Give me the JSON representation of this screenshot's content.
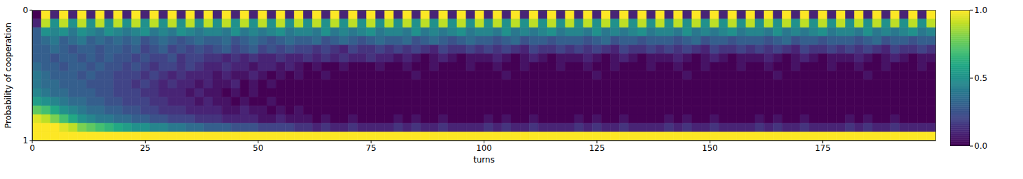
{
  "chart_data": {
    "type": "heatmap",
    "xlabel": "turns",
    "ylabel": "Probability of cooperation",
    "xlim": [
      0,
      200
    ],
    "xticks": [
      0,
      25,
      50,
      75,
      100,
      125,
      150,
      175
    ],
    "ylim": [
      0,
      1
    ],
    "yticks": [
      0,
      1
    ],
    "colorbar": {
      "range": [
        0,
        1
      ],
      "ticks": [
        {
          "value": 0,
          "label": "0.0"
        },
        {
          "value": 0.5,
          "label": "0.5"
        },
        {
          "value": 1,
          "label": "1.0"
        }
      ]
    },
    "cells": [
      [
        0,
        1,
        0.1,
        1,
        0.1,
        1,
        0.1,
        1,
        0.1,
        1,
        0.1,
        1,
        0.1,
        1,
        0.1,
        1,
        0.1,
        1,
        0.1,
        1,
        0.1,
        1,
        0.1,
        1,
        0.1,
        1,
        0.1,
        1,
        0.1,
        1,
        0.1,
        1,
        0.1,
        1,
        0.1,
        1,
        0.1,
        1,
        0.1,
        1,
        0.1,
        1,
        0.1,
        1,
        0.1,
        1,
        0.1,
        1,
        0.1,
        1,
        0.1,
        1,
        0.1,
        1,
        0.1,
        1,
        0.1,
        1,
        0.1,
        1,
        0.1,
        1,
        0.1,
        1,
        0.1,
        1,
        0.1,
        1,
        0.1,
        1,
        0.1,
        1,
        0.1,
        1,
        0.1,
        1,
        0.1,
        1,
        0.1,
        1,
        0.1,
        1,
        0.1,
        1,
        0.1,
        1,
        0.1,
        1,
        0.1,
        1,
        0.1,
        1,
        0.1,
        1,
        0.1,
        1,
        0.1,
        1,
        0.1,
        1
      ],
      [
        0.1,
        0.9,
        0.5,
        0.9,
        0.5,
        0.9,
        0.5,
        0.9,
        0.5,
        0.9,
        0.5,
        0.9,
        0.5,
        0.9,
        0.5,
        0.9,
        0.5,
        0.9,
        0.5,
        0.9,
        0.5,
        0.9,
        0.5,
        0.9,
        0.5,
        0.9,
        0.5,
        0.9,
        0.5,
        0.9,
        0.5,
        0.9,
        0.5,
        0.9,
        0.5,
        0.9,
        0.5,
        0.9,
        0.5,
        0.9,
        0.5,
        0.9,
        0.5,
        0.9,
        0.5,
        0.9,
        0.5,
        0.9,
        0.5,
        0.9,
        0.5,
        0.9,
        0.5,
        0.9,
        0.5,
        0.9,
        0.5,
        0.9,
        0.5,
        0.9,
        0.5,
        0.9,
        0.5,
        0.9,
        0.5,
        0.9,
        0.5,
        0.9,
        0.5,
        0.9,
        0.5,
        0.9,
        0.5,
        0.9,
        0.5,
        0.9,
        0.5,
        0.9,
        0.5,
        0.9,
        0.5,
        0.9,
        0.5,
        0.9,
        0.5,
        0.9,
        0.5,
        0.9,
        0.5,
        0.9,
        0.5,
        0.9,
        0.5,
        0.9,
        0.5,
        0.9,
        0.5,
        0.9,
        0.5,
        0.9
      ],
      [
        0.3,
        0.5,
        0.45,
        0.5,
        0.4,
        0.5,
        0.45,
        0.4,
        0.5,
        0.45,
        0.4,
        0.45,
        0.5,
        0.4,
        0.45,
        0.4,
        0.5,
        0.45,
        0.4,
        0.45,
        0.45,
        0.4,
        0.5,
        0.4,
        0.45,
        0.4,
        0.45,
        0.5,
        0.4,
        0.45,
        0.45,
        0.4,
        0.5,
        0.4,
        0.45,
        0.4,
        0.45,
        0.5,
        0.4,
        0.45,
        0.45,
        0.4,
        0.5,
        0.4,
        0.45,
        0.4,
        0.45,
        0.5,
        0.4,
        0.45,
        0.45,
        0.4,
        0.5,
        0.4,
        0.45,
        0.4,
        0.45,
        0.5,
        0.4,
        0.45,
        0.45,
        0.4,
        0.5,
        0.4,
        0.45,
        0.4,
        0.45,
        0.5,
        0.4,
        0.45,
        0.45,
        0.4,
        0.5,
        0.4,
        0.45,
        0.4,
        0.45,
        0.5,
        0.4,
        0.45,
        0.45,
        0.4,
        0.5,
        0.4,
        0.45,
        0.4,
        0.45,
        0.5,
        0.4,
        0.45,
        0.45,
        0.4,
        0.5,
        0.4,
        0.45,
        0.4,
        0.45,
        0.5,
        0.4,
        0.45
      ],
      [
        0.3,
        0.35,
        0.4,
        0.3,
        0.35,
        0.4,
        0.3,
        0.35,
        0.3,
        0.35,
        0.3,
        0.35,
        0.25,
        0.3,
        0.35,
        0.3,
        0.25,
        0.3,
        0.35,
        0.3,
        0.3,
        0.35,
        0.25,
        0.3,
        0.35,
        0.3,
        0.25,
        0.3,
        0.35,
        0.3,
        0.3,
        0.35,
        0.25,
        0.3,
        0.35,
        0.3,
        0.25,
        0.3,
        0.35,
        0.3,
        0.3,
        0.35,
        0.25,
        0.3,
        0.35,
        0.3,
        0.25,
        0.3,
        0.35,
        0.3,
        0.3,
        0.25,
        0.3,
        0.35,
        0.25,
        0.3,
        0.3,
        0.25,
        0.3,
        0.3,
        0.3,
        0.25,
        0.3,
        0.35,
        0.25,
        0.3,
        0.3,
        0.25,
        0.3,
        0.3,
        0.3,
        0.25,
        0.3,
        0.35,
        0.25,
        0.3,
        0.3,
        0.25,
        0.3,
        0.3,
        0.3,
        0.25,
        0.3,
        0.35,
        0.25,
        0.3,
        0.3,
        0.25,
        0.3,
        0.3,
        0.3,
        0.25,
        0.3,
        0.35,
        0.25,
        0.3,
        0.3,
        0.25,
        0.3,
        0.3
      ],
      [
        0.3,
        0.3,
        0.35,
        0.3,
        0.25,
        0.3,
        0.3,
        0.25,
        0.3,
        0.3,
        0.25,
        0.3,
        0.2,
        0.25,
        0.3,
        0.2,
        0.25,
        0.2,
        0.25,
        0.2,
        0.25,
        0.3,
        0.2,
        0.25,
        0.3,
        0.2,
        0.25,
        0.2,
        0.25,
        0.2,
        0.2,
        0.15,
        0.2,
        0.15,
        0.1,
        0.2,
        0.15,
        0.15,
        0.2,
        0.15,
        0.2,
        0.15,
        0.2,
        0.15,
        0.1,
        0.2,
        0.15,
        0.15,
        0.2,
        0.15,
        0.2,
        0.15,
        0.2,
        0.15,
        0.1,
        0.2,
        0.15,
        0.15,
        0.2,
        0.15,
        0.2,
        0.15,
        0.2,
        0.15,
        0.1,
        0.2,
        0.15,
        0.15,
        0.2,
        0.15,
        0.2,
        0.15,
        0.2,
        0.15,
        0.1,
        0.2,
        0.15,
        0.15,
        0.2,
        0.15,
        0.2,
        0.15,
        0.2,
        0.15,
        0.1,
        0.2,
        0.15,
        0.15,
        0.2,
        0.15,
        0.2,
        0.15,
        0.2,
        0.15,
        0.1,
        0.2,
        0.15,
        0.15,
        0.2,
        0.15
      ],
      [
        0.3,
        0.3,
        0.25,
        0.3,
        0.3,
        0.25,
        0.3,
        0.25,
        0.3,
        0.25,
        0.25,
        0.2,
        0.25,
        0.2,
        0.2,
        0.25,
        0.15,
        0.2,
        0.2,
        0.15,
        0.15,
        0.1,
        0.15,
        0.1,
        0.15,
        0.1,
        0.1,
        0.15,
        0.1,
        0.1,
        0.15,
        0.1,
        0.15,
        0.1,
        0.15,
        0.1,
        0.1,
        0.15,
        0.1,
        0.1,
        0.05,
        0.1,
        0.05,
        0,
        0.05,
        0.1,
        0.05,
        0,
        0.05,
        0.05,
        0.05,
        0.1,
        0.05,
        0,
        0.05,
        0.1,
        0.05,
        0,
        0.05,
        0.05,
        0.05,
        0.1,
        0.05,
        0,
        0.05,
        0.1,
        0.05,
        0,
        0.05,
        0.05,
        0.05,
        0.1,
        0.05,
        0,
        0.05,
        0.1,
        0.05,
        0,
        0.05,
        0.05,
        0.05,
        0.1,
        0.05,
        0,
        0.05,
        0.1,
        0.05,
        0,
        0.05,
        0.05,
        0.05,
        0.1,
        0.05,
        0,
        0.05,
        0.1,
        0.05,
        0,
        0.05,
        0.05
      ],
      [
        0.35,
        0.3,
        0.3,
        0.25,
        0.3,
        0.3,
        0.25,
        0.3,
        0.25,
        0.25,
        0.2,
        0.25,
        0.2,
        0.15,
        0.2,
        0.2,
        0.15,
        0.2,
        0.15,
        0.1,
        0.1,
        0.15,
        0.1,
        0.1,
        0.05,
        0.1,
        0.1,
        0.05,
        0.1,
        0.05,
        0,
        0.05,
        0,
        0,
        0.05,
        0,
        0,
        0,
        0.05,
        0,
        0,
        0.05,
        0,
        0,
        0.05,
        0,
        0,
        0,
        0.05,
        0,
        0,
        0.05,
        0,
        0,
        0.05,
        0,
        0,
        0,
        0.05,
        0,
        0,
        0.05,
        0,
        0,
        0.05,
        0,
        0,
        0,
        0.05,
        0,
        0,
        0.05,
        0,
        0,
        0.05,
        0,
        0,
        0,
        0.05,
        0,
        0,
        0.05,
        0,
        0,
        0.05,
        0,
        0,
        0,
        0.05,
        0,
        0,
        0.05,
        0,
        0,
        0.05,
        0,
        0,
        0,
        0.05,
        0
      ],
      [
        0.4,
        0.35,
        0.3,
        0.3,
        0.3,
        0.25,
        0.3,
        0.25,
        0.25,
        0.2,
        0.2,
        0.2,
        0.15,
        0.2,
        0.15,
        0.1,
        0.15,
        0.1,
        0.1,
        0.1,
        0.05,
        0.1,
        0.05,
        0.05,
        0.1,
        0.05,
        0,
        0.05,
        0,
        0.05,
        0,
        0,
        0.05,
        0,
        0,
        0,
        0,
        0,
        0,
        0,
        0,
        0,
        0.05,
        0,
        0,
        0,
        0,
        0,
        0,
        0,
        0,
        0,
        0.05,
        0,
        0,
        0,
        0,
        0,
        0,
        0,
        0,
        0,
        0.05,
        0,
        0,
        0,
        0,
        0,
        0,
        0,
        0,
        0,
        0.05,
        0,
        0,
        0,
        0,
        0,
        0,
        0,
        0,
        0,
        0.05,
        0,
        0,
        0,
        0,
        0,
        0,
        0,
        0,
        0,
        0.05,
        0,
        0,
        0,
        0,
        0,
        0,
        0
      ],
      [
        0.4,
        0.35,
        0.35,
        0.3,
        0.3,
        0.3,
        0.25,
        0.25,
        0.25,
        0.2,
        0.2,
        0.15,
        0.2,
        0.15,
        0.1,
        0.15,
        0.1,
        0.1,
        0.05,
        0.1,
        0.05,
        0.05,
        0.1,
        0,
        0.05,
        0,
        0.05,
        0,
        0,
        0,
        0,
        0,
        0,
        0,
        0,
        0,
        0,
        0,
        0,
        0,
        0,
        0,
        0,
        0,
        0,
        0,
        0,
        0,
        0,
        0,
        0,
        0,
        0,
        0,
        0,
        0,
        0,
        0,
        0,
        0,
        0,
        0,
        0,
        0,
        0,
        0,
        0,
        0,
        0,
        0,
        0,
        0,
        0,
        0,
        0,
        0,
        0,
        0,
        0,
        0,
        0,
        0,
        0,
        0,
        0,
        0,
        0,
        0,
        0,
        0,
        0,
        0,
        0,
        0,
        0,
        0,
        0,
        0,
        0,
        0
      ],
      [
        0.45,
        0.4,
        0.35,
        0.35,
        0.3,
        0.3,
        0.3,
        0.25,
        0.25,
        0.2,
        0.2,
        0.2,
        0.15,
        0.15,
        0.1,
        0.1,
        0.1,
        0.05,
        0.1,
        0.05,
        0.05,
        0,
        0.05,
        0,
        0.05,
        0,
        0,
        0,
        0,
        0,
        0,
        0,
        0,
        0,
        0,
        0,
        0,
        0,
        0,
        0,
        0,
        0,
        0,
        0,
        0,
        0,
        0,
        0,
        0,
        0,
        0,
        0,
        0,
        0,
        0,
        0,
        0,
        0,
        0,
        0,
        0,
        0,
        0,
        0,
        0,
        0,
        0,
        0,
        0,
        0,
        0,
        0,
        0,
        0,
        0,
        0,
        0,
        0,
        0,
        0,
        0,
        0,
        0,
        0,
        0,
        0,
        0,
        0,
        0,
        0,
        0,
        0,
        0,
        0,
        0,
        0,
        0,
        0,
        0,
        0
      ],
      [
        0.55,
        0.5,
        0.45,
        0.4,
        0.35,
        0.35,
        0.3,
        0.3,
        0.25,
        0.25,
        0.2,
        0.2,
        0.2,
        0.15,
        0.15,
        0.1,
        0.1,
        0.1,
        0.05,
        0.1,
        0.05,
        0.05,
        0,
        0.05,
        0,
        0,
        0.05,
        0,
        0,
        0,
        0,
        0,
        0,
        0,
        0,
        0,
        0,
        0,
        0,
        0,
        0,
        0,
        0,
        0,
        0,
        0,
        0,
        0,
        0,
        0,
        0,
        0,
        0,
        0,
        0,
        0,
        0,
        0,
        0,
        0,
        0,
        0,
        0,
        0,
        0,
        0,
        0,
        0,
        0,
        0,
        0,
        0,
        0,
        0,
        0,
        0,
        0,
        0,
        0,
        0,
        0,
        0,
        0,
        0,
        0,
        0,
        0,
        0,
        0,
        0,
        0,
        0,
        0,
        0,
        0,
        0,
        0,
        0,
        0,
        0
      ],
      [
        0.75,
        0.7,
        0.6,
        0.5,
        0.45,
        0.4,
        0.35,
        0.35,
        0.3,
        0.3,
        0.25,
        0.25,
        0.2,
        0.2,
        0.15,
        0.15,
        0.15,
        0.1,
        0.1,
        0.1,
        0.1,
        0.05,
        0.05,
        0.1,
        0.05,
        0.05,
        0,
        0.05,
        0,
        0.05,
        0,
        0,
        0,
        0,
        0,
        0,
        0,
        0,
        0,
        0,
        0,
        0,
        0,
        0,
        0,
        0,
        0,
        0,
        0,
        0,
        0,
        0,
        0,
        0,
        0,
        0,
        0,
        0,
        0,
        0,
        0,
        0,
        0,
        0,
        0,
        0,
        0,
        0,
        0,
        0,
        0,
        0,
        0,
        0,
        0,
        0,
        0,
        0,
        0,
        0,
        0,
        0,
        0,
        0,
        0,
        0,
        0,
        0,
        0,
        0,
        0,
        0,
        0,
        0,
        0,
        0,
        0,
        0,
        0,
        0
      ],
      [
        0.95,
        0.9,
        0.8,
        0.7,
        0.6,
        0.5,
        0.45,
        0.4,
        0.4,
        0.35,
        0.35,
        0.3,
        0.3,
        0.25,
        0.25,
        0.2,
        0.2,
        0.2,
        0.15,
        0.15,
        0.15,
        0.1,
        0.1,
        0.1,
        0.1,
        0.05,
        0.05,
        0.1,
        0.05,
        0.05,
        0.05,
        0,
        0.05,
        0,
        0,
        0.05,
        0,
        0,
        0,
        0,
        0.05,
        0,
        0.05,
        0,
        0,
        0.05,
        0,
        0,
        0,
        0,
        0.05,
        0,
        0.05,
        0,
        0,
        0.05,
        0,
        0,
        0,
        0,
        0.05,
        0,
        0.05,
        0,
        0,
        0.05,
        0,
        0,
        0,
        0,
        0.05,
        0,
        0.05,
        0,
        0,
        0.05,
        0,
        0,
        0,
        0,
        0.05,
        0,
        0.05,
        0,
        0,
        0.05,
        0,
        0,
        0,
        0,
        0.05,
        0,
        0.05,
        0,
        0,
        0.05,
        0,
        0,
        0,
        0
      ],
      [
        1,
        1,
        1,
        0.95,
        0.9,
        0.8,
        0.75,
        0.7,
        0.65,
        0.6,
        0.55,
        0.5,
        0.5,
        0.45,
        0.45,
        0.4,
        0.4,
        0.35,
        0.35,
        0.3,
        0.3,
        0.3,
        0.25,
        0.25,
        0.25,
        0.2,
        0.2,
        0.2,
        0.2,
        0.15,
        0.15,
        0.1,
        0.15,
        0.1,
        0.1,
        0.15,
        0.1,
        0.1,
        0.1,
        0.1,
        0.15,
        0.1,
        0.15,
        0.1,
        0.1,
        0.15,
        0.1,
        0.1,
        0.1,
        0.1,
        0.15,
        0.1,
        0.15,
        0.1,
        0.1,
        0.15,
        0.1,
        0.1,
        0.1,
        0.1,
        0.15,
        0.1,
        0.15,
        0.1,
        0.1,
        0.15,
        0.1,
        0.1,
        0.1,
        0.1,
        0.15,
        0.1,
        0.15,
        0.1,
        0.1,
        0.15,
        0.1,
        0.1,
        0.1,
        0.1,
        0.15,
        0.1,
        0.15,
        0.1,
        0.1,
        0.15,
        0.1,
        0.1,
        0.1,
        0.1,
        0.15,
        0.1,
        0.15,
        0.1,
        0.1,
        0.15,
        0.1,
        0.1,
        0.1,
        0.1
      ],
      [
        1,
        1,
        1,
        1,
        1,
        1,
        1,
        1,
        1,
        1,
        1,
        1,
        1,
        1,
        1,
        1,
        1,
        1,
        1,
        1,
        1,
        1,
        1,
        1,
        1,
        1,
        1,
        1,
        1,
        1,
        1,
        1,
        1,
        1,
        1,
        1,
        1,
        1,
        1,
        1,
        1,
        1,
        1,
        1,
        1,
        1,
        1,
        1,
        1,
        1,
        1,
        1,
        1,
        1,
        1,
        1,
        1,
        1,
        1,
        1,
        1,
        1,
        1,
        1,
        1,
        1,
        1,
        1,
        1,
        1,
        1,
        1,
        1,
        1,
        1,
        1,
        1,
        1,
        1,
        1,
        1,
        1,
        1,
        1,
        1,
        1,
        1,
        1,
        1,
        1,
        1,
        1,
        1,
        1,
        1,
        1,
        1,
        1,
        1,
        1
      ]
    ]
  }
}
